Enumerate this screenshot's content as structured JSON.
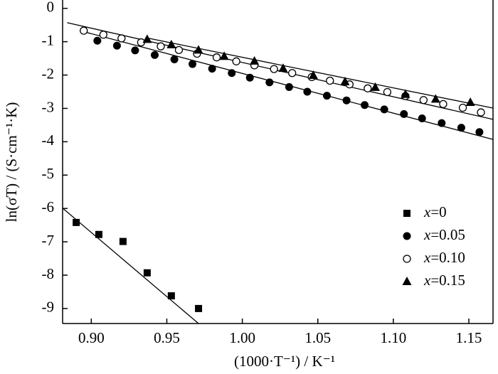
{
  "chart_data": {
    "type": "scatter",
    "xlabel": "(1000·T⁻¹) / K⁻¹",
    "ylabel": "ln(σT) / (S·cm⁻¹·K)",
    "xlim": [
      0.881,
      1.166
    ],
    "ylim": [
      -9.45,
      0.25
    ],
    "xticks": [
      {
        "value": 0.9,
        "label": "0.90"
      },
      0.95,
      {
        "value": 1.0,
        "label": "1.00"
      },
      1.05,
      {
        "value": 1.1,
        "label": "1.10"
      },
      1.15
    ],
    "yticks": [
      0,
      -1,
      -2,
      -3,
      -4,
      -5,
      -6,
      -7,
      -8,
      -9
    ],
    "legend": "lower right",
    "series": [
      {
        "name": "x=0",
        "marker": "square",
        "color": "#000",
        "x": [
          0.89,
          0.905,
          0.921,
          0.937,
          0.953,
          0.971
        ],
        "values": [
          -6.42,
          -6.78,
          -6.99,
          -7.93,
          -8.62,
          -9.0
        ],
        "fit": {
          "x": [
            0.881,
            0.971
          ],
          "values": [
            -5.99,
            -9.45
          ]
        }
      },
      {
        "name": "x=0.05",
        "marker": "circle",
        "color": "#000",
        "x": [
          0.904,
          0.917,
          0.929,
          0.942,
          0.955,
          0.967,
          0.98,
          0.993,
          1.005,
          1.018,
          1.031,
          1.043,
          1.056,
          1.069,
          1.081,
          1.094,
          1.107,
          1.119,
          1.132,
          1.145,
          1.157
        ],
        "values": [
          -0.97,
          -1.12,
          -1.26,
          -1.4,
          -1.53,
          -1.67,
          -1.81,
          -1.94,
          -2.08,
          -2.22,
          -2.36,
          -2.5,
          -2.62,
          -2.76,
          -2.9,
          -3.03,
          -3.17,
          -3.3,
          -3.44,
          -3.58,
          -3.71
        ],
        "fit": {
          "x": [
            0.895,
            1.166
          ],
          "values": [
            -0.7,
            -3.93
          ]
        }
      },
      {
        "name": "x=0.10",
        "marker": "open-circle",
        "color": "#000",
        "x": [
          0.895,
          0.908,
          0.92,
          0.933,
          0.946,
          0.958,
          0.97,
          0.983,
          0.996,
          1.008,
          1.021,
          1.033,
          1.046,
          1.058,
          1.071,
          1.083,
          1.096,
          1.108,
          1.12,
          1.133,
          1.146,
          1.158
        ],
        "values": [
          -0.67,
          -0.79,
          -0.9,
          -1.02,
          -1.14,
          -1.25,
          -1.36,
          -1.47,
          -1.59,
          -1.71,
          -1.82,
          -1.94,
          -2.06,
          -2.17,
          -2.28,
          -2.4,
          -2.51,
          -2.63,
          -2.75,
          -2.87,
          -2.98,
          -3.12
        ],
        "fit": {
          "x": [
            0.884,
            1.166
          ],
          "values": [
            -0.43,
            -3.33
          ]
        }
      },
      {
        "name": "x=0.15",
        "marker": "triangle",
        "color": "#000",
        "x": [
          0.937,
          0.953,
          0.971,
          0.988,
          1.008,
          1.027,
          1.047,
          1.068,
          1.088,
          1.108,
          1.128,
          1.151
        ],
        "values": [
          -0.93,
          -1.09,
          -1.25,
          -1.44,
          -1.58,
          -1.8,
          -2.01,
          -2.2,
          -2.37,
          -2.58,
          -2.72,
          -2.82
        ],
        "fit": {
          "x": [
            0.936,
            1.166
          ],
          "values": [
            -0.88,
            -2.99
          ]
        }
      }
    ]
  }
}
